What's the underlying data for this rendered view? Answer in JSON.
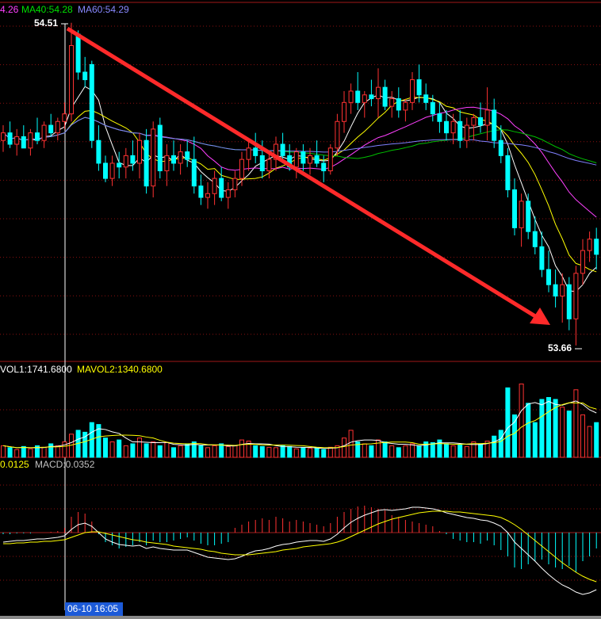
{
  "chart_data": {
    "type": "candlestick",
    "ma_labels": [
      {
        "label": "4.26",
        "color": "#ff40ff"
      },
      {
        "label": "MA40:54.28",
        "color": "#00e000"
      },
      {
        "label": "MA60:54.29",
        "color": "#8888ff"
      }
    ],
    "ma_lines": [
      {
        "period": 5,
        "color": "#ffffff"
      },
      {
        "period": 10,
        "color": "#ffff00"
      },
      {
        "period": 20,
        "color": "#ff40ff"
      },
      {
        "period": 40,
        "color": "#00c000"
      },
      {
        "period": 60,
        "color": "#8080ff"
      }
    ],
    "high_label": "54.51",
    "low_label": "53.66",
    "cursor_label": "06-10 16:05",
    "up_color": "#ff3232",
    "down_color": "#00ffff",
    "ylim": [
      53.62,
      54.57
    ],
    "ohlc": [
      [
        54.2,
        54.24,
        54.17,
        54.22
      ],
      [
        54.22,
        54.25,
        54.18,
        54.19
      ],
      [
        54.19,
        54.23,
        54.16,
        54.21
      ],
      [
        54.21,
        54.24,
        54.18,
        54.18
      ],
      [
        54.18,
        54.23,
        54.16,
        54.22
      ],
      [
        54.22,
        54.26,
        54.19,
        54.2
      ],
      [
        54.2,
        54.25,
        54.18,
        54.24
      ],
      [
        54.24,
        54.27,
        54.21,
        54.22
      ],
      [
        54.22,
        54.26,
        54.2,
        54.25
      ],
      [
        54.25,
        54.3,
        54.23,
        54.27
      ],
      [
        54.27,
        54.51,
        54.25,
        54.45
      ],
      [
        54.48,
        54.49,
        54.36,
        54.38
      ],
      [
        54.38,
        54.42,
        54.34,
        54.36
      ],
      [
        54.4,
        54.41,
        54.18,
        54.2
      ],
      [
        54.2,
        54.24,
        54.12,
        54.14
      ],
      [
        54.14,
        54.16,
        54.09,
        54.1
      ],
      [
        54.1,
        54.16,
        54.08,
        54.14
      ],
      [
        54.14,
        54.17,
        54.1,
        54.13
      ],
      [
        54.13,
        54.18,
        54.1,
        54.16
      ],
      [
        54.16,
        54.2,
        54.12,
        54.14
      ],
      [
        54.14,
        54.22,
        54.1,
        54.2
      ],
      [
        54.2,
        54.23,
        54.06,
        54.08
      ],
      [
        54.08,
        54.25,
        54.05,
        54.23
      ],
      [
        54.24,
        54.26,
        54.1,
        54.12
      ],
      [
        54.12,
        54.19,
        54.08,
        54.16
      ],
      [
        54.16,
        54.2,
        54.12,
        54.14
      ],
      [
        54.14,
        54.19,
        54.11,
        54.17
      ],
      [
        54.17,
        54.2,
        54.13,
        54.15
      ],
      [
        54.15,
        54.21,
        54.06,
        54.08
      ],
      [
        54.08,
        54.11,
        54.03,
        54.05
      ],
      [
        54.05,
        54.09,
        54.02,
        54.06
      ],
      [
        54.06,
        54.12,
        54.03,
        54.1
      ],
      [
        54.1,
        54.13,
        54.04,
        54.05
      ],
      [
        54.05,
        54.09,
        54.02,
        54.07
      ],
      [
        54.07,
        54.12,
        54.05,
        54.1
      ],
      [
        54.1,
        54.17,
        54.08,
        54.15
      ],
      [
        54.15,
        54.2,
        54.12,
        54.18
      ],
      [
        54.18,
        54.22,
        54.14,
        54.16
      ],
      [
        54.16,
        54.2,
        54.1,
        54.12
      ],
      [
        54.12,
        54.17,
        54.1,
        54.15
      ],
      [
        54.15,
        54.21,
        54.12,
        54.19
      ],
      [
        54.19,
        54.22,
        54.14,
        54.16
      ],
      [
        54.16,
        54.19,
        54.12,
        54.13
      ],
      [
        54.13,
        54.18,
        54.1,
        54.17
      ],
      [
        54.17,
        54.19,
        54.12,
        54.14
      ],
      [
        54.14,
        54.18,
        54.11,
        54.16
      ],
      [
        54.16,
        54.2,
        54.13,
        54.14
      ],
      [
        54.14,
        54.16,
        54.09,
        54.12
      ],
      [
        54.12,
        54.19,
        54.11,
        54.18
      ],
      [
        54.18,
        54.27,
        54.16,
        54.25
      ],
      [
        54.25,
        54.33,
        54.22,
        54.3
      ],
      [
        54.3,
        54.35,
        54.27,
        54.33
      ],
      [
        54.33,
        54.38,
        54.28,
        54.3
      ],
      [
        54.3,
        54.33,
        54.26,
        54.32
      ],
      [
        54.32,
        54.36,
        54.29,
        54.31
      ],
      [
        54.31,
        54.39,
        54.26,
        54.34
      ],
      [
        54.34,
        54.36,
        54.28,
        54.29
      ],
      [
        54.29,
        54.33,
        54.26,
        54.31
      ],
      [
        54.31,
        54.34,
        54.26,
        54.28
      ],
      [
        54.28,
        54.31,
        54.25,
        54.3
      ],
      [
        54.3,
        54.38,
        54.28,
        54.36
      ],
      [
        54.36,
        54.4,
        54.3,
        54.32
      ],
      [
        54.32,
        54.35,
        54.28,
        54.3
      ],
      [
        54.3,
        54.32,
        54.25,
        54.27
      ],
      [
        54.27,
        54.3,
        54.22,
        54.25
      ],
      [
        54.25,
        54.28,
        54.2,
        54.22
      ],
      [
        54.22,
        54.27,
        54.19,
        54.25
      ],
      [
        54.25,
        54.28,
        54.18,
        54.2
      ],
      [
        54.2,
        54.26,
        54.18,
        54.24
      ],
      [
        54.24,
        54.27,
        54.2,
        54.26
      ],
      [
        54.26,
        54.3,
        54.22,
        54.24
      ],
      [
        54.24,
        54.34,
        54.2,
        54.28
      ],
      [
        54.28,
        54.31,
        54.18,
        54.2
      ],
      [
        54.2,
        54.24,
        54.14,
        54.16
      ],
      [
        54.16,
        54.18,
        54.05,
        54.07
      ],
      [
        54.07,
        54.1,
        53.95,
        53.97
      ],
      [
        53.97,
        54.06,
        53.92,
        54.04
      ],
      [
        54.04,
        54.06,
        53.94,
        53.96
      ],
      [
        53.96,
        54.0,
        53.9,
        53.92
      ],
      [
        53.92,
        53.96,
        53.84,
        53.86
      ],
      [
        53.86,
        53.91,
        53.8,
        53.82
      ],
      [
        53.82,
        53.86,
        53.76,
        53.79
      ],
      [
        53.79,
        53.85,
        53.72,
        53.82
      ],
      [
        53.82,
        53.84,
        53.7,
        53.73
      ],
      [
        53.73,
        53.87,
        53.66,
        53.85
      ],
      [
        53.85,
        53.94,
        53.82,
        53.91
      ],
      [
        53.91,
        53.96,
        53.88,
        53.94
      ],
      [
        53.94,
        53.97,
        53.86,
        53.9
      ]
    ],
    "volume": {
      "labels": [
        {
          "label": "VOL1:1741.6800",
          "color": "#ffffff"
        },
        {
          "label": "MAVOL2:1340.6800",
          "color": "#ffff00"
        }
      ],
      "ma_lines": [
        {
          "period": 5,
          "color": "#ffffff"
        },
        {
          "period": 10,
          "color": "#ffff00"
        }
      ],
      "ylim": [
        0,
        2300
      ],
      "values": [
        300,
        250,
        200,
        280,
        220,
        300,
        260,
        350,
        300,
        400,
        600,
        700,
        650,
        900,
        850,
        500,
        400,
        450,
        300,
        350,
        500,
        350,
        400,
        300,
        380,
        250,
        300,
        350,
        400,
        300,
        250,
        300,
        350,
        280,
        300,
        450,
        420,
        300,
        280,
        260,
        250,
        300,
        280,
        220,
        250,
        230,
        240,
        200,
        260,
        300,
        500,
        700,
        400,
        350,
        300,
        450,
        400,
        300,
        250,
        300,
        350,
        300,
        400,
        380,
        450,
        350,
        300,
        320,
        280,
        400,
        350,
        420,
        550,
        700,
        1800,
        1100,
        1900,
        1400,
        900,
        1500,
        1550,
        1500,
        1300,
        1200,
        1750,
        1100,
        800,
        900
      ]
    },
    "macd": {
      "labels": [
        {
          "label": "0.0125",
          "color": "#ffff00"
        },
        {
          "label": "MACD:0.0352",
          "color": "#c0c0c0"
        }
      ],
      "ylim": [
        -0.103,
        0.092
      ],
      "hist": [
        -0.002,
        -0.002,
        -0.001,
        -0.001,
        -0.001,
        0.0,
        0.0,
        0.001,
        0.002,
        0.006,
        0.02,
        0.026,
        0.024,
        0.014,
        -0.002,
        -0.012,
        -0.016,
        -0.02,
        -0.018,
        -0.016,
        -0.012,
        -0.016,
        -0.01,
        -0.012,
        -0.012,
        -0.01,
        -0.008,
        -0.006,
        -0.01,
        -0.014,
        -0.016,
        -0.016,
        -0.014,
        -0.012,
        0.006,
        0.01,
        0.014,
        0.016,
        0.018,
        0.016,
        0.02,
        0.018,
        0.014,
        0.016,
        0.014,
        0.012,
        0.01,
        0.008,
        0.012,
        0.02,
        0.026,
        0.03,
        0.033,
        0.034,
        0.032,
        0.03,
        0.028,
        0.022,
        0.02,
        0.016,
        0.014,
        0.012,
        0.01,
        0.008,
        0.002,
        -0.002,
        -0.008,
        -0.01,
        -0.012,
        -0.012,
        -0.014,
        -0.01,
        -0.016,
        -0.022,
        -0.03,
        -0.044,
        -0.046,
        -0.04,
        -0.036,
        -0.034,
        -0.04,
        -0.044,
        -0.046,
        -0.042,
        -0.05,
        -0.036,
        -0.03,
        -0.02
      ],
      "dif": [
        -0.012,
        -0.011,
        -0.01,
        -0.01,
        -0.009,
        -0.008,
        -0.008,
        -0.007,
        -0.006,
        -0.004,
        0.004,
        0.01,
        0.012,
        0.008,
        0.0,
        -0.008,
        -0.012,
        -0.015,
        -0.016,
        -0.017,
        -0.016,
        -0.02,
        -0.018,
        -0.02,
        -0.021,
        -0.022,
        -0.022,
        -0.022,
        -0.025,
        -0.028,
        -0.031,
        -0.032,
        -0.033,
        -0.034,
        -0.033,
        -0.03,
        -0.026,
        -0.023,
        -0.022,
        -0.02,
        -0.017,
        -0.015,
        -0.014,
        -0.012,
        -0.011,
        -0.01,
        -0.01,
        -0.011,
        -0.008,
        -0.002,
        0.006,
        0.013,
        0.018,
        0.022,
        0.025,
        0.028,
        0.029,
        0.028,
        0.029,
        0.03,
        0.032,
        0.032,
        0.031,
        0.03,
        0.028,
        0.025,
        0.023,
        0.021,
        0.019,
        0.018,
        0.016,
        0.015,
        0.012,
        0.008,
        0.0,
        -0.012,
        -0.02,
        -0.028,
        -0.036,
        -0.045,
        -0.053,
        -0.06,
        -0.066,
        -0.07,
        -0.075,
        -0.078,
        -0.076,
        -0.072
      ],
      "dea": [
        -0.014,
        -0.014,
        -0.013,
        -0.013,
        -0.012,
        -0.012,
        -0.011,
        -0.011,
        -0.01,
        -0.009,
        -0.006,
        -0.003,
        0.0,
        0.001,
        0.001,
        -0.001,
        -0.003,
        -0.005,
        -0.007,
        -0.009,
        -0.01,
        -0.012,
        -0.013,
        -0.014,
        -0.015,
        -0.017,
        -0.018,
        -0.019,
        -0.02,
        -0.021,
        -0.023,
        -0.024,
        -0.026,
        -0.027,
        -0.028,
        -0.028,
        -0.028,
        -0.027,
        -0.026,
        -0.025,
        -0.024,
        -0.022,
        -0.021,
        -0.02,
        -0.018,
        -0.017,
        -0.016,
        -0.015,
        -0.014,
        -0.012,
        -0.009,
        -0.005,
        -0.001,
        0.003,
        0.007,
        0.011,
        0.014,
        0.017,
        0.019,
        0.021,
        0.023,
        0.025,
        0.026,
        0.027,
        0.027,
        0.027,
        0.026,
        0.026,
        0.025,
        0.024,
        0.023,
        0.022,
        0.021,
        0.019,
        0.015,
        0.01,
        0.004,
        -0.003,
        -0.01,
        -0.017,
        -0.024,
        -0.031,
        -0.038,
        -0.044,
        -0.05,
        -0.055,
        -0.059,
        -0.062
      ],
      "dif_color": "#ffffff",
      "dea_color": "#ffff00"
    }
  }
}
